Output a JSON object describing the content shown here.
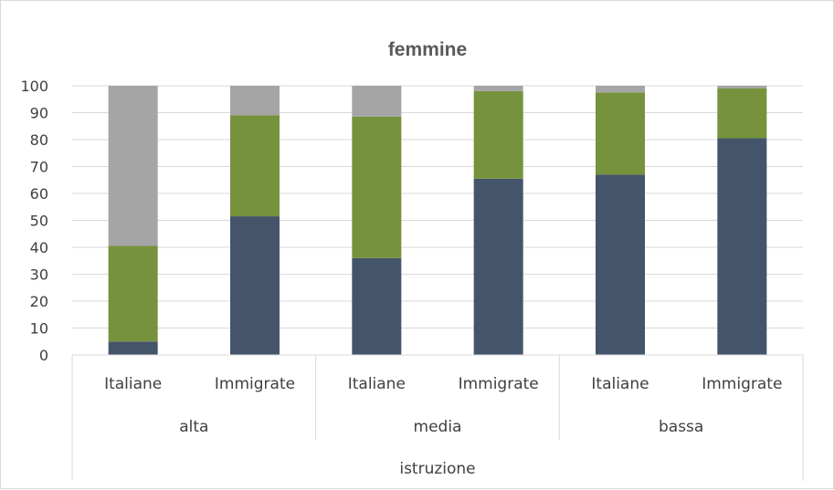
{
  "chart_data": {
    "type": "bar",
    "stacked": true,
    "title": "femmine",
    "categories": [
      "Italiane",
      "Immigrate",
      "Italiane",
      "Immigrate",
      "Italiane",
      "Immigrate"
    ],
    "groups": [
      "alta",
      "media",
      "bassa"
    ],
    "group_axis_label": "istruzione",
    "yticks": [
      "0",
      "10",
      "20",
      "30",
      "40",
      "50",
      "60",
      "70",
      "80",
      "90",
      "100"
    ],
    "ylim": [
      0,
      100
    ],
    "grid": true,
    "legend": "none",
    "series": [
      {
        "color": "#44546a",
        "values": [
          5,
          51.5,
          36,
          65.5,
          67,
          80.5
        ]
      },
      {
        "color": "#76923c",
        "values": [
          35.5,
          37.5,
          52.5,
          32.5,
          30.5,
          18.5
        ]
      },
      {
        "color": "#a5a5a5",
        "values": [
          59.5,
          11,
          11.5,
          2,
          2.5,
          1
        ]
      }
    ]
  }
}
